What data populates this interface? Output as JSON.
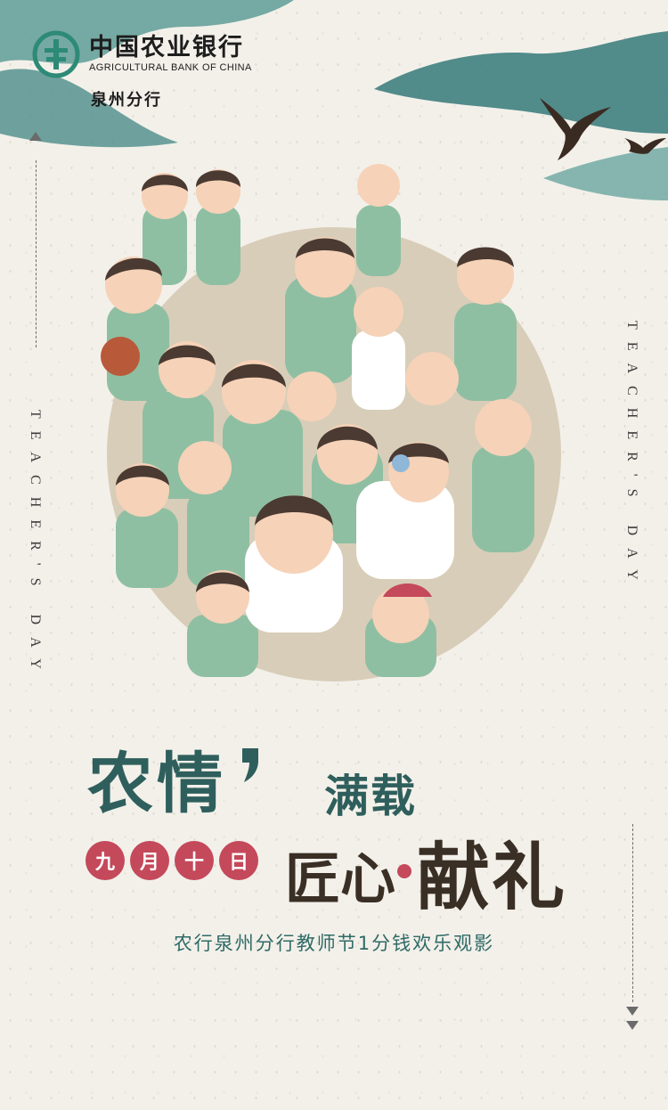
{
  "brand": {
    "name_cn": "中国农业银行",
    "name_en": "AGRICULTURAL BANK OF CHINA",
    "branch": "泉州分行",
    "logo_icon": "abc-logo-icon",
    "color": "#2d8a76"
  },
  "side_text": {
    "left": "TEACHER'S DAY",
    "right": "TEACHER'S DAY"
  },
  "illustration": {
    "icon": "students-group-illustration"
  },
  "headline": {
    "line1": "农情",
    "line1_suffix": "满载",
    "date_chars": [
      "九",
      "月",
      "十",
      "日"
    ],
    "line2_a": "匠心",
    "line2_b": "献礼"
  },
  "subtitle": "农行泉州分行教师节1分钱欢乐观影",
  "colors": {
    "teal": "#2f5f5c",
    "accent_red": "#c4495a",
    "ink": "#3a2f25"
  }
}
